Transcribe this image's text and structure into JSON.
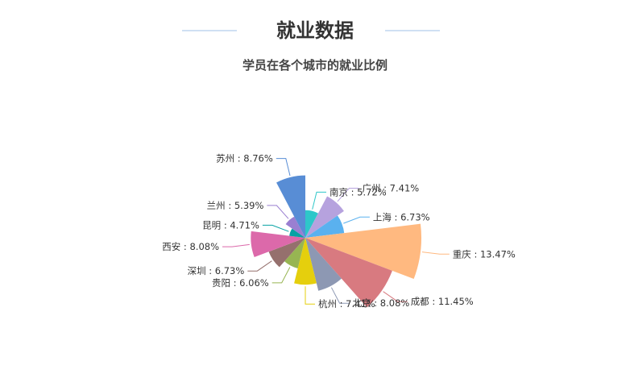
{
  "header": {
    "title": "就业数据",
    "subtitle": "学员在各个城市的就业比例"
  },
  "chart_data": {
    "type": "pie",
    "variant": "nightingale-rose (radius by value)",
    "legend": "none",
    "series": [
      {
        "name": "南京",
        "value": 5.72,
        "color": "#2ec7c9"
      },
      {
        "name": "广州",
        "value": 7.41,
        "color": "#b6a2de"
      },
      {
        "name": "上海",
        "value": 6.73,
        "color": "#5ab1ef"
      },
      {
        "name": "重庆",
        "value": 13.47,
        "color": "#ffb980"
      },
      {
        "name": "成都",
        "value": 11.45,
        "color": "#d87a80"
      },
      {
        "name": "北京",
        "value": 8.08,
        "color": "#8d98b3"
      },
      {
        "name": "杭州",
        "value": 7.41,
        "color": "#e5cf0d"
      },
      {
        "name": "贵阳",
        "value": 6.06,
        "color": "#97b552"
      },
      {
        "name": "深圳",
        "value": 6.73,
        "color": "#95706d"
      },
      {
        "name": "西安",
        "value": 8.08,
        "color": "#dc69aa"
      },
      {
        "name": "昆明",
        "value": 4.71,
        "color": "#07a2a4"
      },
      {
        "name": "兰州",
        "value": 5.39,
        "color": "#9a7fd1"
      },
      {
        "name": "苏州",
        "value": 8.76,
        "color": "#588dd5"
      }
    ]
  }
}
